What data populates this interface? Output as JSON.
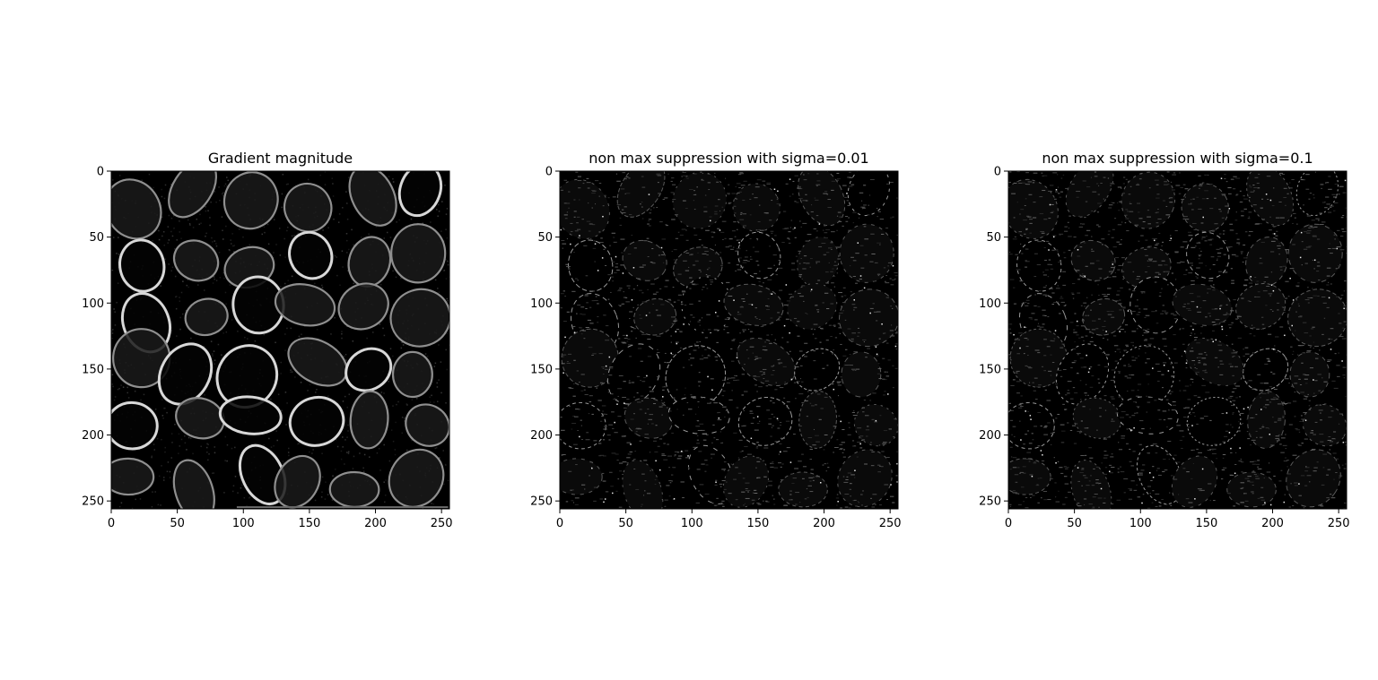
{
  "figure": {
    "background": "#ffffff",
    "image_colormap": "gray"
  },
  "chart_data": [
    {
      "type": "heatmap",
      "title": "Gradient magnitude",
      "xlabel": "",
      "ylabel": "",
      "xlim": [
        0,
        256
      ],
      "ylim": [
        256,
        0
      ],
      "xticks": [
        0,
        50,
        100,
        150,
        200,
        250
      ],
      "yticks": [
        0,
        50,
        100,
        150,
        200,
        250
      ],
      "grid": false,
      "image_style": "dense bright cell-boundary edges on black"
    },
    {
      "type": "heatmap",
      "title": "non max suppression with sigma=0.01",
      "xlabel": "",
      "ylabel": "",
      "xlim": [
        0,
        256
      ],
      "ylim": [
        256,
        0
      ],
      "xticks": [
        0,
        50,
        100,
        150,
        200,
        250
      ],
      "yticks": [
        0,
        50,
        100,
        150,
        200,
        250
      ],
      "grid": false,
      "image_style": "thin sparse edge pixels on black"
    },
    {
      "type": "heatmap",
      "title": "non max suppression with sigma=0.1",
      "xlabel": "",
      "ylabel": "",
      "xlim": [
        0,
        256
      ],
      "ylim": [
        256,
        0
      ],
      "xticks": [
        0,
        50,
        100,
        150,
        200,
        250
      ],
      "yticks": [
        0,
        50,
        100,
        150,
        200,
        250
      ],
      "grid": false,
      "image_style": "thin sparse edge pixels on black"
    }
  ]
}
